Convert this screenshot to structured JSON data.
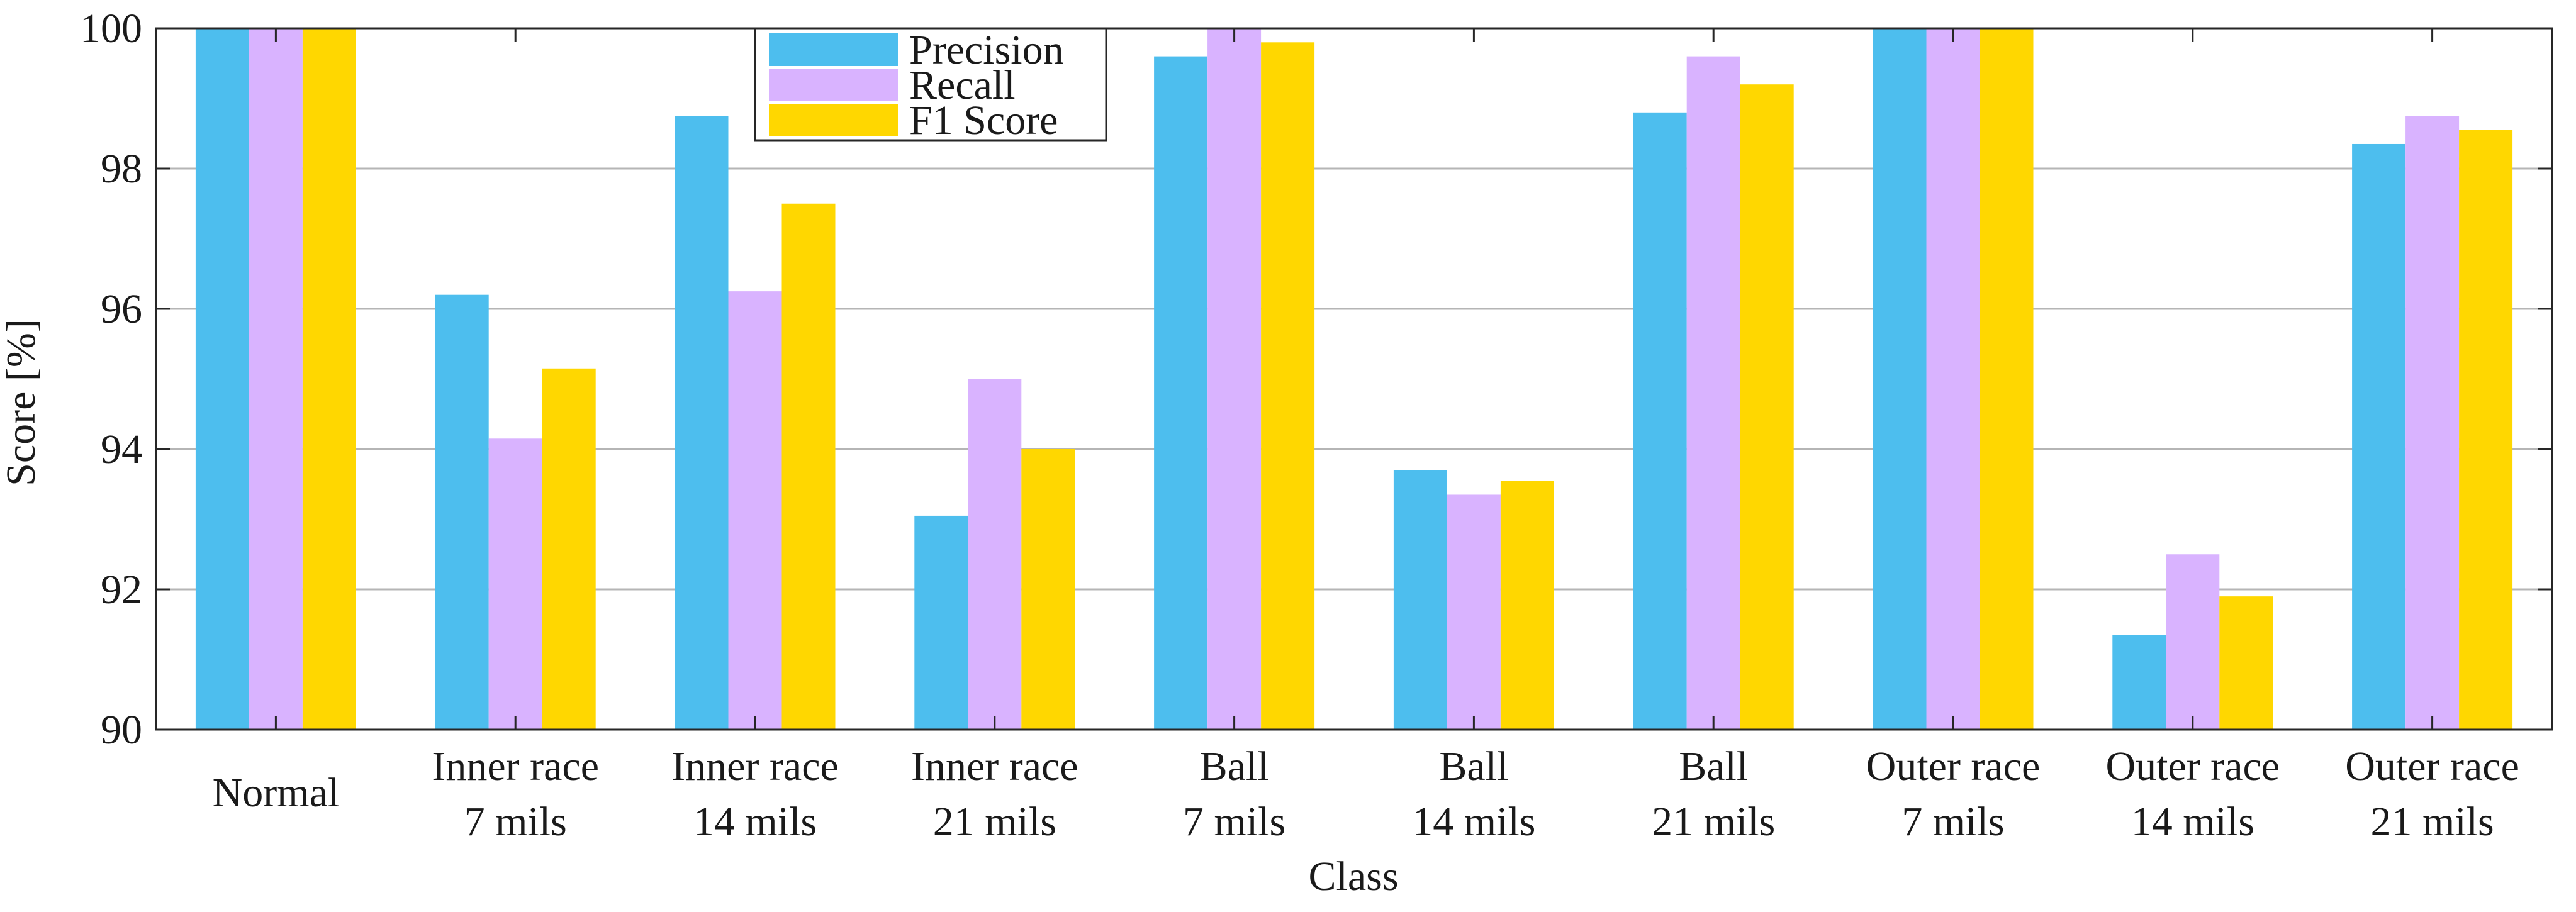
{
  "chart_data": {
    "type": "bar",
    "title": "",
    "xlabel": "Class",
    "ylabel": "Score [%]",
    "ylim": [
      90,
      100
    ],
    "yticks": [
      90,
      92,
      94,
      96,
      98,
      100
    ],
    "grid": "horizontal",
    "legend_position": "top-left",
    "categories": [
      [
        "Normal"
      ],
      [
        "Inner race",
        "7 mils"
      ],
      [
        "Inner race",
        "14 mils"
      ],
      [
        "Inner race",
        "21 mils"
      ],
      [
        "Ball",
        "7 mils"
      ],
      [
        "Ball",
        "14 mils"
      ],
      [
        "Ball",
        "21 mils"
      ],
      [
        "Outer race",
        "7 mils"
      ],
      [
        "Outer race",
        "14 mils"
      ],
      [
        "Outer race",
        "21 mils"
      ]
    ],
    "series": [
      {
        "name": "Precision",
        "color": "#4DBEEE",
        "values": [
          100,
          96.2,
          98.75,
          93.05,
          99.6,
          93.7,
          98.8,
          100,
          91.35,
          98.35
        ]
      },
      {
        "name": "Recall",
        "color": "#D9B3FF",
        "values": [
          100,
          94.15,
          96.25,
          95.0,
          100,
          93.35,
          99.6,
          100,
          92.5,
          98.75
        ]
      },
      {
        "name": "F1 Score",
        "color": "#FFD700",
        "values": [
          100,
          95.15,
          97.5,
          94.0,
          99.8,
          93.55,
          99.2,
          100,
          91.9,
          98.55
        ]
      }
    ]
  }
}
